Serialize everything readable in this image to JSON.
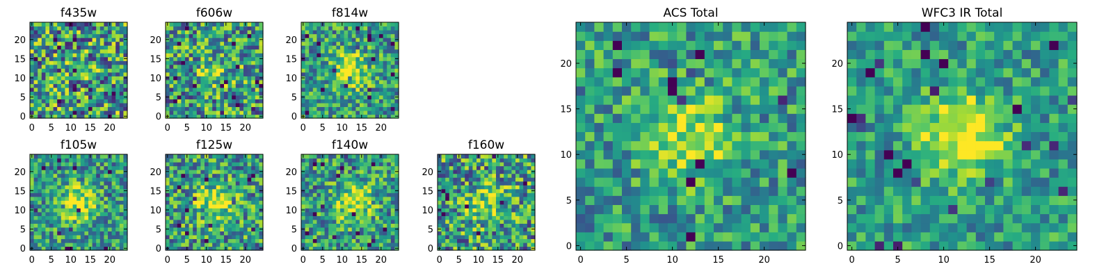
{
  "chart_data": [
    {
      "type": "heatmap",
      "title": "f435w",
      "size": 25,
      "cmap": "viridis",
      "source_peak": [
        12,
        12
      ],
      "source_strength": 0.05,
      "pixel_scale": 1.0,
      "noise": 0.55,
      "xticks": [
        0,
        5,
        10,
        15,
        20
      ],
      "yticks": [
        0,
        5,
        10,
        15,
        20
      ],
      "xlim": [
        0,
        24
      ],
      "ylim": [
        0,
        24
      ]
    },
    {
      "type": "heatmap",
      "title": "f606w",
      "size": 25,
      "cmap": "viridis",
      "source_peak": [
        12,
        12
      ],
      "source_strength": 0.35,
      "pixel_scale": 1.0,
      "noise": 0.5,
      "xticks": [
        0,
        5,
        10,
        15,
        20
      ],
      "yticks": [
        0,
        5,
        10,
        15,
        20
      ],
      "xlim": [
        0,
        24
      ],
      "ylim": [
        0,
        24
      ]
    },
    {
      "type": "heatmap",
      "title": "f814w",
      "size": 25,
      "cmap": "viridis",
      "source_peak": [
        12,
        12
      ],
      "source_strength": 0.75,
      "pixel_scale": 1.0,
      "noise": 0.4,
      "xticks": [
        0,
        5,
        10,
        15,
        20
      ],
      "yticks": [
        0,
        5,
        10,
        15,
        20
      ],
      "xlim": [
        0,
        24
      ],
      "ylim": [
        0,
        24
      ]
    },
    {
      "type": "heatmap",
      "title": "f105w",
      "size": 25,
      "cmap": "viridis",
      "source_peak": [
        12,
        12
      ],
      "source_strength": 0.7,
      "pixel_scale": 1.0,
      "noise": 0.4,
      "xticks": [
        0,
        5,
        10,
        15,
        20
      ],
      "yticks": [
        0,
        5,
        10,
        15,
        20
      ],
      "xlim": [
        0,
        24
      ],
      "ylim": [
        0,
        24
      ]
    },
    {
      "type": "heatmap",
      "title": "f125w",
      "size": 25,
      "cmap": "viridis",
      "source_peak": [
        12,
        12
      ],
      "source_strength": 0.65,
      "pixel_scale": 1.0,
      "noise": 0.45,
      "xticks": [
        0,
        5,
        10,
        15,
        20
      ],
      "yticks": [
        0,
        5,
        10,
        15,
        20
      ],
      "xlim": [
        0,
        24
      ],
      "ylim": [
        0,
        24
      ]
    },
    {
      "type": "heatmap",
      "title": "f140w",
      "size": 25,
      "cmap": "viridis",
      "source_peak": [
        13,
        12
      ],
      "source_strength": 0.75,
      "pixel_scale": 1.0,
      "noise": 0.4,
      "xticks": [
        0,
        5,
        10,
        15,
        20
      ],
      "yticks": [
        0,
        5,
        10,
        15,
        20
      ],
      "xlim": [
        0,
        24
      ],
      "ylim": [
        0,
        24
      ]
    },
    {
      "type": "heatmap",
      "title": "f160w",
      "size": 25,
      "cmap": "viridis",
      "source_peak": [
        12,
        12
      ],
      "source_strength": 0.6,
      "pixel_scale": 1.0,
      "noise": 0.5,
      "xticks": [
        0,
        5,
        10,
        15,
        20
      ],
      "yticks": [
        0,
        5,
        10,
        15,
        20
      ],
      "xlim": [
        0,
        24
      ],
      "ylim": [
        0,
        24
      ]
    },
    {
      "type": "heatmap",
      "title": "ACS Total",
      "size": 25,
      "cmap": "viridis",
      "source_peak": [
        12,
        12
      ],
      "source_strength": 0.65,
      "pixel_scale": 1.0,
      "noise": 0.35,
      "xticks": [
        0,
        5,
        10,
        15,
        20
      ],
      "yticks": [
        0,
        5,
        10,
        15,
        20
      ],
      "xlim": [
        0,
        24
      ],
      "ylim": [
        0,
        24
      ]
    },
    {
      "type": "heatmap",
      "title": "WFC3 IR Total",
      "size": 25,
      "cmap": "viridis",
      "source_peak": [
        12,
        12
      ],
      "source_strength": 0.85,
      "pixel_scale": 1.0,
      "noise": 0.3,
      "xticks": [
        0,
        5,
        10,
        15,
        20
      ],
      "yticks": [
        0,
        5,
        10,
        15,
        20
      ],
      "xlim": [
        0,
        24
      ],
      "ylim": [
        0,
        24
      ]
    }
  ]
}
